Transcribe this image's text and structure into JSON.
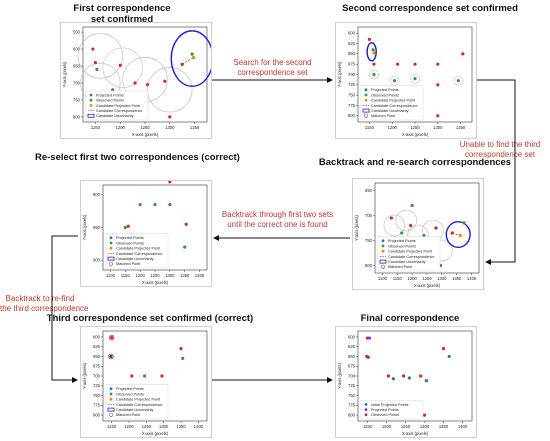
{
  "titles": {
    "p1": "First correspondence\nset confirmed",
    "p2": "Second correspondence set confirmed",
    "p3": "Re-select first two correspondences (correct)",
    "p4": "Backtrack and re-search correspondences",
    "p5": "Third correspondence set confirmed (correct)",
    "p6": "Final correspondence"
  },
  "transitions": {
    "search_second": "Search for the second\ncorrespondence set",
    "unable_third": "Unable to find the third\ncorrespondence set",
    "backtrack_through": "Backtrack through first two sets\nuntil the correct one is found",
    "backtrack_refind": "Backtrack to re-find\nthe third correspondence"
  },
  "axis": {
    "xlabel": "X-axis (pixels)",
    "ylabel": "Y-axis (pixels)"
  },
  "legend_full": [
    {
      "label": "Projected Points",
      "symbol": "dot",
      "color": "#1f77b4"
    },
    {
      "label": "Observed Points",
      "symbol": "dot",
      "color": "#2ca02c"
    },
    {
      "label": "Candidate Projected Point",
      "symbol": "dot",
      "color": "#ff7f0e"
    },
    {
      "label": "Candidate Correspondence",
      "symbol": "dashed",
      "color": "#d62728"
    },
    {
      "label": "Candidate Uncertainty",
      "symbol": "ellipse",
      "color": "#1f1fd0"
    },
    {
      "label": "Matched Point",
      "symbol": "circle",
      "color": "#d62728"
    }
  ],
  "legend_first": [
    {
      "label": "Projected Points",
      "symbol": "dot",
      "color": "#1f77b4"
    },
    {
      "label": "Observed Points",
      "symbol": "dot",
      "color": "#2ca02c"
    },
    {
      "label": "Candidate Projected Point",
      "symbol": "dot",
      "color": "#ff7f0e"
    },
    {
      "label": "Candidate Correspondence",
      "symbol": "dashed",
      "color": "#d62728"
    },
    {
      "label": "Candidate Uncertainty",
      "symbol": "ellipse",
      "color": "#1f1fd0"
    }
  ],
  "legend_final": [
    {
      "label": "Initial Projected Points",
      "symbol": "dot",
      "color": "#1f77b4"
    },
    {
      "label": "Projected Points",
      "symbol": "dot",
      "color": "#7b2ff7"
    },
    {
      "label": "Observed Points",
      "symbol": "dot",
      "color": "#d62728"
    }
  ],
  "plots": {
    "p1": {
      "xticks": [
        "1150",
        "1200",
        "1250",
        "1300",
        "1350"
      ],
      "yticks": [
        "550",
        "600",
        "650",
        "700",
        "750",
        "800"
      ],
      "points": [
        {
          "x": 1145,
          "y": 600,
          "c": "#d62728"
        },
        {
          "x": 1150,
          "y": 640,
          "c": "#d62728"
        },
        {
          "x": 1153,
          "y": 660,
          "c": "#2ca02c"
        },
        {
          "x": 1200,
          "y": 648,
          "c": "#d62728"
        },
        {
          "x": 1230,
          "y": 700,
          "c": "#d62728"
        },
        {
          "x": 1255,
          "y": 705,
          "c": "#d62728"
        },
        {
          "x": 1290,
          "y": 695,
          "c": "#d62728"
        },
        {
          "x": 1325,
          "y": 645,
          "c": "#d62728"
        },
        {
          "x": 1345,
          "y": 615,
          "c": "#2ca02c"
        },
        {
          "x": 1348,
          "y": 625,
          "c": "#ff7f0e"
        },
        {
          "x": 1185,
          "y": 720,
          "c": "#2ca02c"
        },
        {
          "x": 1300,
          "y": 800,
          "c": "#d62728"
        }
      ],
      "grey_circles": [
        {
          "x": 1160,
          "y": 620,
          "r": 45
        },
        {
          "x": 1205,
          "y": 655,
          "r": 40
        },
        {
          "x": 1250,
          "y": 690,
          "r": 45
        },
        {
          "x": 1160,
          "y": 700,
          "r": 40
        },
        {
          "x": 1300,
          "y": 720,
          "r": 45
        }
      ],
      "blue_ellipses": [
        {
          "x": 1345,
          "y": 628,
          "rx": 42,
          "ry": 62
        }
      ],
      "dashed": [
        {
          "x1": 1325,
          "y1": 645,
          "x2": 1348,
          "y2": 625
        }
      ]
    },
    "p2": {
      "xticks": [
        "1150",
        "1200",
        "1250",
        "1300",
        "1350"
      ],
      "yticks": [
        "600",
        "625",
        "650",
        "675",
        "700",
        "725",
        "750",
        "775",
        "800"
      ],
      "points": [
        {
          "x": 1150,
          "y": 615,
          "c": "#d62728"
        },
        {
          "x": 1158,
          "y": 640,
          "c": "#2ca02c"
        },
        {
          "x": 1160,
          "y": 648,
          "c": "#ff7f0e"
        },
        {
          "x": 1160,
          "y": 675,
          "c": "#d62728"
        },
        {
          "x": 1212,
          "y": 675,
          "c": "#d62728"
        },
        {
          "x": 1250,
          "y": 675,
          "c": "#d62728"
        },
        {
          "x": 1300,
          "y": 675,
          "c": "#d62728"
        },
        {
          "x": 1355,
          "y": 650,
          "c": "#d62728"
        },
        {
          "x": 1160,
          "y": 700,
          "c": "#2ca02c"
        },
        {
          "x": 1205,
          "y": 715,
          "c": "#2ca02c"
        },
        {
          "x": 1250,
          "y": 710,
          "c": "#2ca02c"
        },
        {
          "x": 1300,
          "y": 725,
          "c": "#d62728"
        },
        {
          "x": 1345,
          "y": 715,
          "c": "#2ca02c"
        },
        {
          "x": 1300,
          "y": 800,
          "c": "#d62728"
        }
      ],
      "grey_circles": [
        {
          "x": 1160,
          "y": 700,
          "r": 10
        },
        {
          "x": 1205,
          "y": 715,
          "r": 10
        },
        {
          "x": 1250,
          "y": 710,
          "r": 10
        },
        {
          "x": 1345,
          "y": 715,
          "r": 10
        }
      ],
      "blue_ellipses": [
        {
          "x": 1155,
          "y": 645,
          "rx": 10,
          "ry": 22
        }
      ],
      "dashed": []
    },
    "p3": {
      "xticks": [
        "1100",
        "1150",
        "1200",
        "1250",
        "1300",
        "1350",
        "1400"
      ],
      "yticks": [
        "800",
        "850",
        "900"
      ],
      "points": [
        {
          "x": 1148,
          "y": 900,
          "c": "#2ca02c"
        },
        {
          "x": 1152,
          "y": 905,
          "c": "#ff7f0e"
        },
        {
          "x": 1150,
          "y": 850,
          "c": "#2ca02c"
        },
        {
          "x": 1160,
          "y": 848,
          "c": "#d62728"
        },
        {
          "x": 1200,
          "y": 815,
          "c": "#2ca02c"
        },
        {
          "x": 1250,
          "y": 815,
          "c": "#2ca02c"
        },
        {
          "x": 1300,
          "y": 815,
          "c": "#2ca02c"
        },
        {
          "x": 1355,
          "y": 845,
          "c": "#d62728"
        },
        {
          "x": 1350,
          "y": 880,
          "c": "#2ca02c"
        },
        {
          "x": 1300,
          "y": 780,
          "c": "#d62728"
        }
      ],
      "grey_circles": [],
      "blue_ellipses": [
        {
          "x": 1150,
          "y": 900,
          "rx": 10,
          "ry": 20
        }
      ],
      "dashed": []
    },
    "p4": {
      "xticks": [
        "1100",
        "1150",
        "1200",
        "1250",
        "1300",
        "1350",
        "1400"
      ],
      "yticks": [
        "650",
        "700",
        "750",
        "800"
      ],
      "points": [
        {
          "x": 1130,
          "y": 705,
          "c": "#d62728"
        },
        {
          "x": 1165,
          "y": 735,
          "c": "#2ca02c"
        },
        {
          "x": 1195,
          "y": 720,
          "c": "#d62728"
        },
        {
          "x": 1240,
          "y": 740,
          "c": "#2ca02c"
        },
        {
          "x": 1280,
          "y": 725,
          "c": "#d62728"
        },
        {
          "x": 1335,
          "y": 735,
          "c": "#d62728"
        },
        {
          "x": 1362,
          "y": 740,
          "c": "#ff7f0e"
        },
        {
          "x": 1375,
          "y": 715,
          "c": "#2ca02c"
        },
        {
          "x": 1200,
          "y": 680,
          "c": "#2ca02c"
        },
        {
          "x": 1295,
          "y": 800,
          "c": "#d62728"
        }
      ],
      "grey_circles": [
        {
          "x": 1140,
          "y": 720,
          "r": 35
        },
        {
          "x": 1180,
          "y": 710,
          "r": 35
        },
        {
          "x": 1220,
          "y": 740,
          "r": 35
        },
        {
          "x": 1270,
          "y": 730,
          "r": 35
        },
        {
          "x": 1300,
          "y": 770,
          "r": 35
        }
      ],
      "blue_ellipses": [
        {
          "x": 1355,
          "y": 738,
          "rx": 40,
          "ry": 48
        }
      ],
      "dashed": [
        {
          "x1": 1335,
          "y1": 735,
          "x2": 1362,
          "y2": 740
        }
      ]
    },
    "p5": {
      "xticks": [
        "1150",
        "1200",
        "1250",
        "1300",
        "1350",
        "1400"
      ],
      "yticks": [
        "600",
        "625",
        "650",
        "675",
        "700",
        "725",
        "750",
        "775",
        "800"
      ],
      "points": [
        {
          "x": 1150,
          "y": 602,
          "c": "#d62728"
        },
        {
          "x": 1148,
          "y": 650,
          "c": "#2f2fd0"
        },
        {
          "x": 1208,
          "y": 700,
          "c": "#d62728"
        },
        {
          "x": 1245,
          "y": 700,
          "c": "#2ca02c"
        },
        {
          "x": 1295,
          "y": 700,
          "c": "#d62728"
        },
        {
          "x": 1355,
          "y": 655,
          "c": "#2ca02c"
        },
        {
          "x": 1350,
          "y": 630,
          "c": "#d62728"
        },
        {
          "x": 1300,
          "y": 800,
          "c": "#d62728"
        }
      ],
      "grey_circles": [],
      "red_circles": [
        {
          "x": 1150,
          "y": 602,
          "r": 7
        },
        {
          "x": 1148,
          "y": 650,
          "r": 7
        }
      ],
      "blue_ellipses": [],
      "dashed": []
    },
    "p6": {
      "xticks": [
        "1150",
        "1200",
        "1250",
        "1300",
        "1350",
        "1400"
      ],
      "yticks": [
        "600",
        "625",
        "650",
        "675",
        "700",
        "725",
        "750",
        "775",
        "800"
      ],
      "points": [
        {
          "x": 1150,
          "y": 603,
          "c": "#d62728"
        },
        {
          "x": 1155,
          "y": 603,
          "c": "#7b2ff7"
        },
        {
          "x": 1148,
          "y": 650,
          "c": "#7b2ff7"
        },
        {
          "x": 1152,
          "y": 652,
          "c": "#d62728"
        },
        {
          "x": 1205,
          "y": 700,
          "c": "#d62728"
        },
        {
          "x": 1218,
          "y": 707,
          "c": "#1f77b4"
        },
        {
          "x": 1245,
          "y": 700,
          "c": "#d62728"
        },
        {
          "x": 1260,
          "y": 705,
          "c": "#1f77b4"
        },
        {
          "x": 1290,
          "y": 700,
          "c": "#d62728"
        },
        {
          "x": 1305,
          "y": 712,
          "c": "#1f77b4"
        },
        {
          "x": 1350,
          "y": 630,
          "c": "#d62728"
        },
        {
          "x": 1365,
          "y": 650,
          "c": "#1f77b4"
        },
        {
          "x": 1300,
          "y": 800,
          "c": "#d62728"
        }
      ],
      "grey_circles": [],
      "blue_ellipses": [],
      "dashed": []
    }
  }
}
